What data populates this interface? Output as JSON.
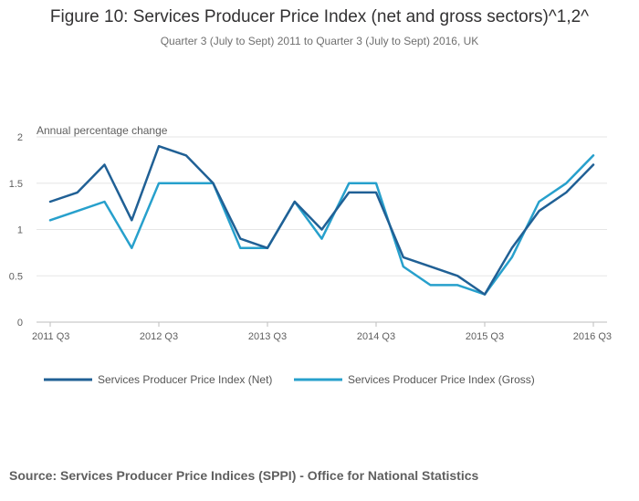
{
  "title": "Figure 10: Services Producer Price Index (net and gross sectors)^1,2^",
  "subtitle": "Quarter 3 (July to Sept) 2011 to Quarter 3 (July to Sept) 2016, UK",
  "source": "Source: Services Producer Price Indices (SPPI) - Office for National Statistics",
  "colors": {
    "net": "#206095",
    "gross": "#27a0cc",
    "grid": "#e6e6e6",
    "axis": "#5f5f5f"
  },
  "chart_data": {
    "type": "line",
    "ylabel": "Annual percentage change",
    "ylim": [
      0,
      2
    ],
    "yticks": [
      0,
      0.5,
      1,
      1.5,
      2
    ],
    "x": [
      "2011 Q3",
      "2011 Q4",
      "2012 Q1",
      "2012 Q2",
      "2012 Q3",
      "2012 Q4",
      "2013 Q1",
      "2013 Q2",
      "2013 Q3",
      "2013 Q4",
      "2014 Q1",
      "2014 Q2",
      "2014 Q3",
      "2014 Q4",
      "2015 Q1",
      "2015 Q2",
      "2015 Q3",
      "2015 Q4",
      "2016 Q1",
      "2016 Q2",
      "2016 Q3"
    ],
    "xtick_labels": [
      "2011 Q3",
      "2012 Q3",
      "2013 Q3",
      "2014 Q3",
      "2015 Q3",
      "2016 Q3"
    ],
    "grid": true,
    "legend_position": "bottom",
    "series": [
      {
        "name": "Services Producer Price Index (Net)",
        "values": [
          1.3,
          1.4,
          1.7,
          1.1,
          1.9,
          1.8,
          1.5,
          0.9,
          0.8,
          1.3,
          1.0,
          1.4,
          1.4,
          0.7,
          0.6,
          0.5,
          0.3,
          0.8,
          1.2,
          1.4,
          1.7
        ]
      },
      {
        "name": "Services Producer Price Index (Gross)",
        "values": [
          1.1,
          1.2,
          1.3,
          0.8,
          1.5,
          1.5,
          1.5,
          0.8,
          0.8,
          1.3,
          0.9,
          1.5,
          1.5,
          0.6,
          0.4,
          0.4,
          0.3,
          0.7,
          1.3,
          1.5,
          1.8
        ]
      }
    ]
  }
}
